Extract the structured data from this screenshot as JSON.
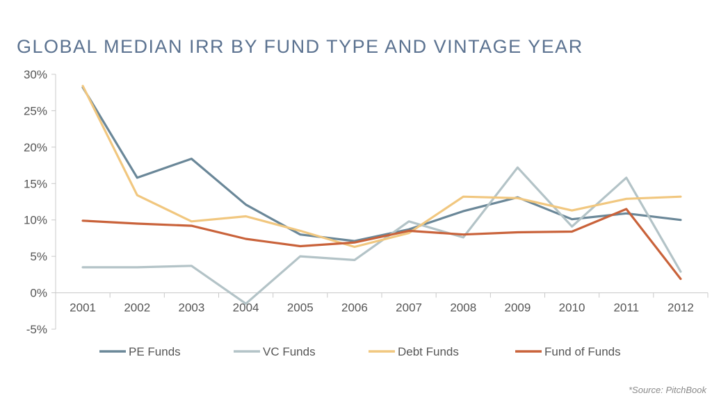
{
  "chart_data": {
    "type": "line",
    "title": "GLOBAL MEDIAN IRR BY FUND TYPE AND VINTAGE YEAR",
    "categories": [
      "2001",
      "2002",
      "2003",
      "2004",
      "2005",
      "2006",
      "2007",
      "2008",
      "2009",
      "2010",
      "2011",
      "2012"
    ],
    "y_ticks": [
      "30%",
      "25%",
      "20%",
      "15%",
      "10%",
      "5%",
      "0%",
      "-5%"
    ],
    "ylim": [
      -5,
      30
    ],
    "y_tick_step": 5,
    "legend_position": "bottom",
    "series": [
      {
        "name": "PE Funds",
        "color": "#6a8798",
        "values": [
          28.2,
          15.8,
          18.4,
          12.1,
          8.0,
          7.1,
          8.7,
          11.2,
          13.1,
          10.1,
          10.9,
          10.0
        ]
      },
      {
        "name": "VC Funds",
        "color": "#b3c3c7",
        "values": [
          3.5,
          3.5,
          3.7,
          -1.5,
          5.0,
          4.5,
          9.8,
          7.6,
          17.2,
          9.1,
          15.8,
          2.9
        ]
      },
      {
        "name": "Debt Funds",
        "color": "#f1c77f",
        "values": [
          28.4,
          13.4,
          9.8,
          10.5,
          8.5,
          6.3,
          8.2,
          13.2,
          13.0,
          11.3,
          12.9,
          13.2
        ]
      },
      {
        "name": "Fund of Funds",
        "color": "#c9623a",
        "values": [
          9.9,
          9.5,
          9.2,
          7.4,
          6.4,
          6.9,
          8.5,
          8.0,
          8.3,
          8.4,
          11.5,
          1.9
        ]
      }
    ]
  },
  "source_note": "*Source: PitchBook"
}
